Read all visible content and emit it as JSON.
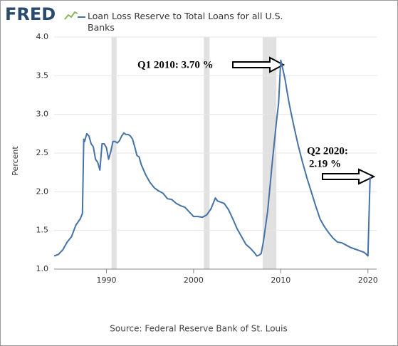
{
  "logo": "FRED",
  "source": "Source: Federal Reserve Bank of St. Louis",
  "chart_data": {
    "type": "line",
    "y_label": "Percent",
    "xlim": [
      1984,
      2021
    ],
    "ylim": [
      1,
      4
    ],
    "xticks": [
      1990,
      2000,
      2010,
      2020
    ],
    "yticks": [
      {
        "value": 1,
        "label": "1.0"
      },
      1.5,
      {
        "value": 2,
        "label": "2.0"
      },
      2.5,
      {
        "value": 3,
        "label": "3.0"
      },
      3.5,
      {
        "value": 4,
        "label": "4.0"
      }
    ],
    "grid": true,
    "recessions": [
      [
        1990.58,
        1991.17
      ],
      [
        2001.17,
        2001.83
      ],
      [
        2007.92,
        2009.5
      ]
    ],
    "recession_color": "#e1e1e1",
    "series": [
      {
        "name": "Loan Loss Reserve to Total Loans for all U.S. Banks",
        "color": "#4572a7",
        "x": [
          1984,
          1984.5,
          1985,
          1985.5,
          1986,
          1986.5,
          1987,
          1987.25,
          1987.4,
          1987.5,
          1987.75,
          1988,
          1988.25,
          1988.5,
          1988.75,
          1989,
          1989.25,
          1989.5,
          1989.75,
          1990,
          1990.25,
          1990.5,
          1990.75,
          1991,
          1991.25,
          1991.5,
          1991.75,
          1992,
          1992.25,
          1992.5,
          1992.75,
          1993,
          1993.25,
          1993.5,
          1993.75,
          1994,
          1994.5,
          1995,
          1995.5,
          1996,
          1996.5,
          1997,
          1997.5,
          1998,
          1998.5,
          1999,
          1999.5,
          2000,
          2000.5,
          2001,
          2001.5,
          2002,
          2002.25,
          2002.5,
          2002.75,
          2003,
          2003.5,
          2004,
          2004.5,
          2005,
          2005.5,
          2006,
          2006.5,
          2007,
          2007.25,
          2007.5,
          2007.75,
          2008,
          2008.5,
          2009,
          2009.5,
          2009.75,
          2010,
          2010.25,
          2010.5,
          2010.75,
          2011,
          2011.5,
          2012,
          2012.5,
          2013,
          2013.5,
          2014,
          2014.5,
          2015,
          2015.5,
          2016,
          2016.5,
          2017,
          2017.5,
          2018,
          2018.5,
          2019,
          2019.5,
          2019.75,
          2020,
          2020.25
        ],
        "values": [
          1.17,
          1.19,
          1.25,
          1.35,
          1.42,
          1.57,
          1.65,
          1.72,
          2.68,
          2.65,
          2.75,
          2.72,
          2.62,
          2.58,
          2.42,
          2.38,
          2.28,
          2.62,
          2.62,
          2.57,
          2.42,
          2.52,
          2.65,
          2.65,
          2.63,
          2.66,
          2.72,
          2.76,
          2.74,
          2.74,
          2.72,
          2.68,
          2.58,
          2.47,
          2.45,
          2.35,
          2.22,
          2.12,
          2.05,
          2.01,
          1.98,
          1.91,
          1.9,
          1.85,
          1.82,
          1.8,
          1.74,
          1.68,
          1.68,
          1.67,
          1.7,
          1.78,
          1.85,
          1.92,
          1.88,
          1.87,
          1.85,
          1.77,
          1.65,
          1.52,
          1.42,
          1.32,
          1.27,
          1.21,
          1.17,
          1.18,
          1.2,
          1.35,
          1.75,
          2.35,
          2.9,
          3.14,
          3.7,
          3.58,
          3.45,
          3.28,
          3.12,
          2.85,
          2.6,
          2.38,
          2.18,
          2,
          1.82,
          1.65,
          1.55,
          1.47,
          1.4,
          1.35,
          1.34,
          1.31,
          1.28,
          1.26,
          1.24,
          1.22,
          1.2,
          1.17,
          2.19
        ]
      }
    ],
    "annotations": [
      "Q1 2010: 3.70 %",
      "Q2 2020:",
      "2.19 %"
    ]
  }
}
